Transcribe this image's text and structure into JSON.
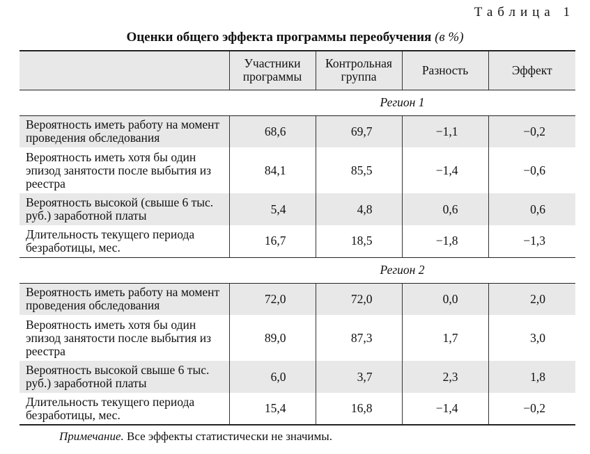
{
  "table_number": "Таблица 1",
  "title": "Оценки общего эффекта программы переобучения",
  "title_unit": "(в %)",
  "columns": {
    "participants": "Участники программы",
    "control": "Контрольная группа",
    "difference": "Разность",
    "effect": "Эффект"
  },
  "regions": [
    {
      "name": "Регион 1",
      "rows": [
        {
          "label": "Вероятность иметь работу на момент проведения обследования",
          "participants": "68,6",
          "control": "69,7",
          "difference": "−1,1",
          "effect": "−0,2"
        },
        {
          "label": "Вероятность иметь хотя бы один эпизод занятости после выбытия из реестра",
          "participants": "84,1",
          "control": "85,5",
          "difference": "−1,4",
          "effect": "−0,6"
        },
        {
          "label": "Вероятность высокой (свыше 6 тыс. руб.) заработной платы",
          "participants": "5,4",
          "control": "4,8",
          "difference": "0,6",
          "effect": "0,6"
        },
        {
          "label": "Длительность текущего периода безработицы, мес.",
          "participants": "16,7",
          "control": "18,5",
          "difference": "−1,8",
          "effect": "−1,3"
        }
      ]
    },
    {
      "name": "Регион 2",
      "rows": [
        {
          "label": "Вероятность иметь работу на момент проведения обследования",
          "participants": "72,0",
          "control": "72,0",
          "difference": "0,0",
          "effect": "2,0"
        },
        {
          "label": "Вероятность иметь хотя бы один эпизод занятости после выбытия из реестра",
          "participants": "89,0",
          "control": "87,3",
          "difference": "1,7",
          "effect": "3,0"
        },
        {
          "label": "Вероятность высокой свыше 6 тыс. руб.) заработной платы",
          "participants": "6,0",
          "control": "3,7",
          "difference": "2,3",
          "effect": "1,8"
        },
        {
          "label": "Длительность текущего периода безработицы, мес.",
          "participants": "15,4",
          "control": "16,8",
          "difference": "−1,4",
          "effect": "−0,2"
        }
      ]
    }
  ],
  "note": {
    "label": "Примечание.",
    "text": "Все эффекты статистически не значимы."
  },
  "colors": {
    "row_shade": "#e8e8e8",
    "rule": "#222222",
    "text": "#111111"
  }
}
